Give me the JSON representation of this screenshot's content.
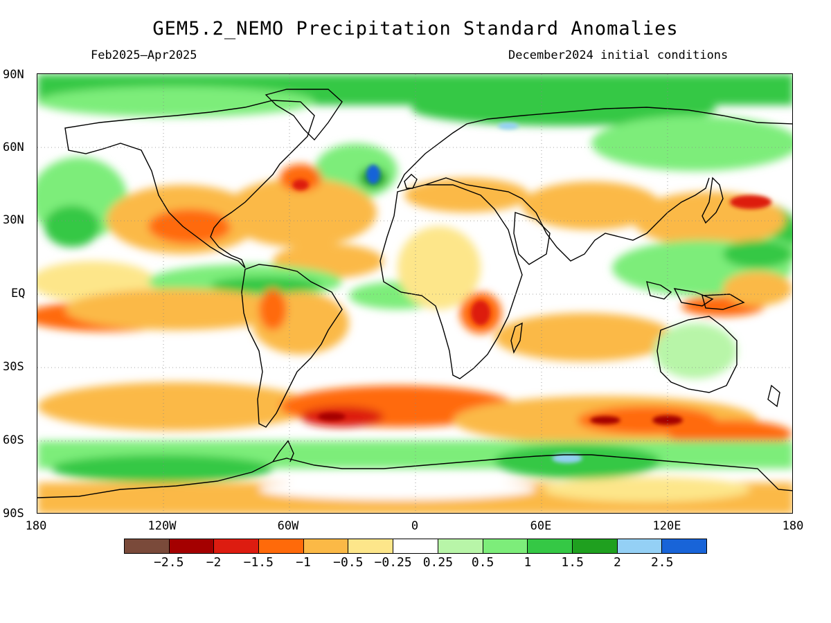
{
  "title": "GEM5.2_NEMO Precipitation Standard Anomalies",
  "period": "Feb2025–Apr2025",
  "initial_conditions": "December2024 initial conditions",
  "lat_ticks": [
    "90N",
    "60N",
    "30N",
    "EQ",
    "30S",
    "60S",
    "90S"
  ],
  "lon_ticks": [
    "180",
    "120W",
    "60W",
    "0",
    "60E",
    "120E",
    "180"
  ],
  "legend": {
    "colors": [
      "#7a4a3a",
      "#a40000",
      "#dd1c10",
      "#ff6a0a",
      "#fbb946",
      "#fde68a",
      "#ffffff",
      "#b8f5a8",
      "#7ded7a",
      "#35c845",
      "#1fa01f",
      "#94d0f5",
      "#1864d8"
    ],
    "labels": [
      "−2.5",
      "−2",
      "−1.5",
      "−1",
      "−0.5",
      "−0.25",
      "0.25",
      "0.5",
      "1",
      "1.5",
      "2",
      "2.5"
    ]
  },
  "map": {
    "ocean_background": "#ffffff",
    "coastline_color": "#000000"
  }
}
